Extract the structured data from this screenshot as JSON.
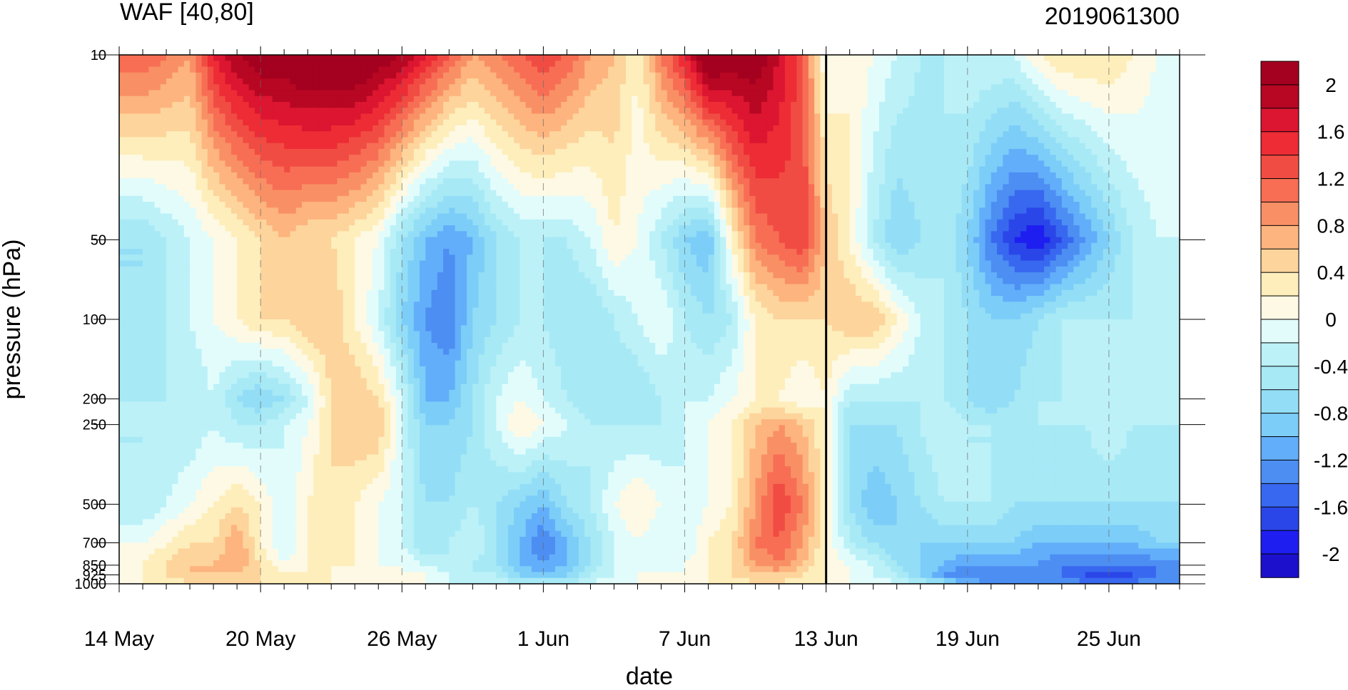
{
  "chart_data": {
    "type": "heatmap",
    "title": "WAF [40,80]",
    "title_right": "2019061300",
    "xlabel": "date",
    "ylabel": "pressure (hPa)",
    "x": [
      "14 May",
      "15 May",
      "16 May",
      "17 May",
      "18 May",
      "19 May",
      "20 May",
      "21 May",
      "22 May",
      "23 May",
      "24 May",
      "25 May",
      "26 May",
      "27 May",
      "28 May",
      "29 May",
      "30 May",
      "31 May",
      "1 Jun",
      "2 Jun",
      "3 Jun",
      "4 Jun",
      "5 Jun",
      "6 Jun",
      "7 Jun",
      "8 Jun",
      "9 Jun",
      "10 Jun",
      "11 Jun",
      "12 Jun",
      "13 Jun",
      "14 Jun",
      "15 Jun",
      "16 Jun",
      "17 Jun",
      "18 Jun",
      "19 Jun",
      "20 Jun",
      "21 Jun",
      "22 Jun",
      "23 Jun",
      "24 Jun",
      "25 Jun",
      "26 Jun",
      "27 Jun",
      "28 Jun"
    ],
    "x_tick_labels": [
      "14 May",
      "20 May",
      "26 May",
      "1 Jun",
      "7 Jun",
      "13 Jun",
      "19 Jun",
      "25 Jun"
    ],
    "y": [
      10,
      50,
      100,
      200,
      250,
      500,
      700,
      850,
      925,
      1000
    ],
    "y_tick_labels": [
      "10",
      "50",
      "100",
      "200",
      "250",
      "500",
      "700",
      "850",
      "925",
      "1000"
    ],
    "y_scale": "log-pressure (inverted)",
    "ylim": [
      1000,
      10
    ],
    "marker_line": "13 Jun",
    "colorbar": {
      "levels": [
        -2.2,
        -2.0,
        -1.8,
        -1.6,
        -1.4,
        -1.2,
        -1.0,
        -0.8,
        -0.6,
        -0.4,
        -0.2,
        0,
        0.2,
        0.4,
        0.6,
        0.8,
        1.0,
        1.2,
        1.4,
        1.6,
        1.8,
        2.0,
        2.2
      ],
      "tick_labels": [
        "2",
        "1.6",
        "1.2",
        "0.8",
        "0.4",
        "0",
        "-0.4",
        "-0.8",
        "-1.2",
        "-1.6",
        "-2"
      ],
      "colors": [
        "#1c10cc",
        "#1e1ef0",
        "#2a46e8",
        "#3868ef",
        "#4d8ef3",
        "#62aefa",
        "#7ccdf8",
        "#93def6",
        "#a8e9f6",
        "#bcf1f8",
        "#e2fcfc",
        "#fdf9e4",
        "#fdeebb",
        "#fdd49c",
        "#fdb47e",
        "#f99065",
        "#f76e55",
        "#f14c43",
        "#ed2c35",
        "#dc1530",
        "#b70723",
        "#a4001f"
      ],
      "placement": "right"
    },
    "values": [
      [
        1.2,
        1.2,
        1.0,
        0.8,
        1.6,
        2.0,
        2.2,
        2.2,
        2.4,
        2.4,
        2.4,
        2.2,
        2.0,
        1.6,
        1.2,
        0.8,
        1.0,
        1.2,
        1.4,
        1.2,
        0.8,
        0.6,
        0.2,
        1.0,
        1.6,
        2.4,
        2.2,
        2.2,
        1.8,
        1.2,
        0.0,
        0.2,
        0.0,
        -0.2,
        -0.4,
        -0.4,
        -0.2,
        -0.2,
        -0.2,
        0.2,
        0.4,
        0.4,
        0.4,
        0.2,
        0.0,
        -0.2
      ],
      [
        -0.6,
        -0.6,
        -0.4,
        -0.2,
        0.0,
        0.2,
        0.4,
        0.6,
        0.4,
        0.4,
        0.2,
        0.0,
        -0.6,
        -1.0,
        -1.2,
        -1.0,
        -0.6,
        -0.4,
        -0.4,
        -0.4,
        -0.2,
        0.2,
        0.0,
        -0.4,
        -0.8,
        -1.0,
        0.2,
        1.0,
        1.2,
        1.4,
        0.6,
        0.2,
        -0.4,
        -0.8,
        -0.6,
        -0.4,
        -0.8,
        -1.4,
        -1.8,
        -2.0,
        -1.6,
        -1.2,
        -0.8,
        -0.4,
        -0.2,
        -0.2
      ],
      [
        -0.6,
        -0.6,
        -0.4,
        -0.2,
        0.0,
        0.2,
        0.4,
        0.4,
        0.6,
        0.6,
        0.2,
        -0.2,
        -0.8,
        -1.2,
        -1.4,
        -0.8,
        -0.6,
        -0.4,
        -0.4,
        -0.6,
        -0.6,
        -0.4,
        -0.2,
        0.0,
        -0.4,
        -0.6,
        -0.4,
        0.2,
        0.4,
        0.4,
        0.4,
        0.6,
        0.6,
        0.2,
        -0.2,
        -0.4,
        -0.6,
        -0.8,
        -0.8,
        -0.6,
        -0.4,
        -0.4,
        -0.4,
        -0.4,
        -0.4,
        -0.4
      ],
      [
        -0.4,
        -0.4,
        -0.4,
        -0.4,
        -0.2,
        -0.6,
        -0.8,
        -0.6,
        -0.2,
        0.4,
        0.6,
        0.4,
        -0.2,
        -1.0,
        -1.0,
        -0.6,
        -0.2,
        0.0,
        -0.2,
        -0.4,
        -0.6,
        -0.6,
        -0.6,
        -0.4,
        -0.2,
        -0.2,
        0.0,
        0.2,
        0.2,
        0.0,
        0.2,
        -0.4,
        -0.4,
        -0.4,
        -0.4,
        -0.4,
        -0.6,
        -0.8,
        -0.6,
        -0.4,
        -0.4,
        -0.4,
        -0.4,
        -0.4,
        -0.4,
        -0.4
      ],
      [
        -0.4,
        -0.4,
        -0.4,
        -0.4,
        -0.2,
        -0.4,
        -0.4,
        -0.2,
        0.0,
        0.4,
        0.6,
        0.6,
        -0.2,
        -0.8,
        -0.8,
        -0.6,
        -0.2,
        0.2,
        0.0,
        -0.2,
        -0.4,
        -0.4,
        -0.4,
        -0.4,
        -0.2,
        0.0,
        0.2,
        0.6,
        0.8,
        0.6,
        0.2,
        -0.6,
        -0.6,
        -0.6,
        -0.4,
        -0.2,
        -0.4,
        -0.4,
        -0.4,
        -0.4,
        -0.4,
        -0.4,
        -0.2,
        -0.4,
        -0.4,
        -0.4
      ],
      [
        -0.4,
        -0.4,
        -0.2,
        0.0,
        0.2,
        0.4,
        0.2,
        -0.2,
        0.2,
        0.4,
        0.2,
        0.0,
        -0.2,
        -0.6,
        -0.6,
        -0.4,
        -0.6,
        -0.8,
        -1.0,
        -0.6,
        -0.4,
        0.0,
        0.2,
        0.0,
        -0.2,
        0.0,
        0.2,
        0.8,
        1.4,
        1.0,
        0.2,
        -0.6,
        -1.0,
        -0.8,
        -0.6,
        -0.4,
        -0.4,
        -0.4,
        -0.6,
        -0.6,
        -0.6,
        -0.6,
        -0.6,
        -0.6,
        -0.6,
        -0.6
      ],
      [
        0.0,
        0.0,
        0.2,
        0.4,
        0.4,
        0.8,
        0.2,
        -0.2,
        0.2,
        0.4,
        0.2,
        0.0,
        -0.2,
        -0.6,
        -0.4,
        -0.2,
        -0.6,
        -1.0,
        -1.4,
        -1.0,
        -0.6,
        -0.2,
        0.0,
        -0.2,
        -0.2,
        0.2,
        0.4,
        1.0,
        1.2,
        0.8,
        0.2,
        -0.4,
        -0.6,
        -0.8,
        -0.8,
        -0.8,
        -0.8,
        -0.8,
        -0.8,
        -1.0,
        -1.0,
        -1.0,
        -1.0,
        -1.0,
        -0.8,
        -0.8
      ],
      [
        0.0,
        0.2,
        0.4,
        0.6,
        0.6,
        0.8,
        0.4,
        0.0,
        0.2,
        0.2,
        0.2,
        0.0,
        0.0,
        -0.2,
        -0.4,
        -0.4,
        -0.6,
        -1.0,
        -1.2,
        -1.0,
        -0.6,
        -0.2,
        -0.2,
        -0.2,
        0.0,
        0.2,
        0.4,
        0.8,
        1.0,
        0.6,
        0.2,
        0.0,
        -0.2,
        -0.6,
        -0.8,
        -1.0,
        -1.2,
        -1.2,
        -1.2,
        -1.2,
        -1.4,
        -1.4,
        -1.4,
        -1.4,
        -1.4,
        -1.4
      ],
      [
        0.0,
        0.2,
        0.4,
        0.6,
        0.6,
        0.6,
        0.4,
        0.2,
        0.2,
        0.2,
        0.0,
        0.0,
        0.0,
        0.0,
        -0.2,
        -0.4,
        -0.4,
        -0.8,
        -1.0,
        -0.8,
        -0.4,
        -0.2,
        0.0,
        0.0,
        0.0,
        0.2,
        0.4,
        0.6,
        0.6,
        0.4,
        0.2,
        0.0,
        -0.2,
        -0.4,
        -0.8,
        -1.2,
        -1.4,
        -1.4,
        -1.4,
        -1.4,
        -1.4,
        -1.6,
        -1.8,
        -1.6,
        -1.4,
        -1.4
      ],
      [
        0.0,
        0.2,
        0.2,
        0.4,
        0.4,
        0.4,
        0.4,
        0.2,
        0.2,
        0.2,
        0.0,
        0.0,
        0.0,
        0.0,
        -0.2,
        -0.2,
        -0.2,
        -0.4,
        -0.4,
        -0.4,
        -0.2,
        0.0,
        0.0,
        0.0,
        0.0,
        0.2,
        0.2,
        0.4,
        0.4,
        0.2,
        0.2,
        0.0,
        0.0,
        -0.2,
        -0.4,
        -0.6,
        -1.0,
        -1.2,
        -1.2,
        -1.2,
        -1.2,
        -1.4,
        -1.4,
        -1.4,
        -1.2,
        -1.2
      ]
    ]
  }
}
